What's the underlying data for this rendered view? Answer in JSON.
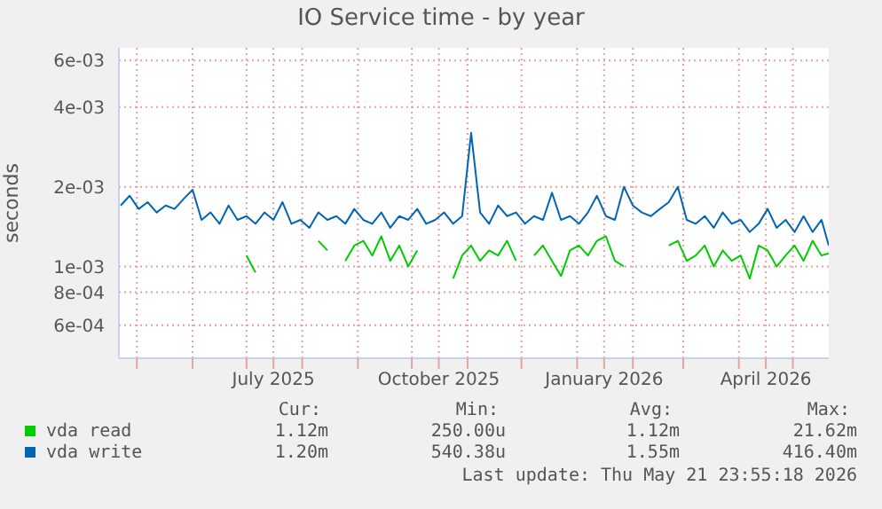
{
  "chart_data": {
    "type": "line",
    "title": "IO Service time - by year",
    "ylabel": "seconds",
    "log": "y",
    "grid": true,
    "legend": "bottom",
    "xlim": [
      "2025-04-21",
      "2026-05-21"
    ],
    "xticks": [
      {
        "value": "2025-05-01",
        "label": null
      },
      {
        "value": "2025-06-01",
        "label": null
      },
      {
        "value": "2025-07-01",
        "label": null
      },
      {
        "value": "2025-07-16",
        "label": "July 2025"
      },
      {
        "value": "2025-08-01",
        "label": null
      },
      {
        "value": "2025-09-01",
        "label": null
      },
      {
        "value": "2025-10-01",
        "label": null
      },
      {
        "value": "2025-10-16",
        "label": "October 2025"
      },
      {
        "value": "2025-11-01",
        "label": null
      },
      {
        "value": "2025-12-01",
        "label": null
      },
      {
        "value": "2026-01-01",
        "label": null
      },
      {
        "value": "2026-01-16",
        "label": "January 2026"
      },
      {
        "value": "2026-02-01",
        "label": null
      },
      {
        "value": "2026-03-01",
        "label": null
      },
      {
        "value": "2026-04-01",
        "label": null
      },
      {
        "value": "2026-04-16",
        "label": "April 2026"
      },
      {
        "value": "2026-05-01",
        "label": null
      }
    ],
    "ylim": [
      0.00045,
      0.0067
    ],
    "yticks": [
      {
        "value": 0.0006,
        "label": "6e-04"
      },
      {
        "value": 0.0008,
        "label": "8e-04"
      },
      {
        "value": 0.001,
        "label": "1e-03"
      },
      {
        "value": 0.002,
        "label": "2e-03"
      },
      {
        "value": 0.004,
        "label": "4e-03"
      },
      {
        "value": 0.006,
        "label": "6e-03"
      }
    ],
    "x": [
      "2025-04-22",
      "2025-04-27",
      "2025-05-02",
      "2025-05-07",
      "2025-05-12",
      "2025-05-17",
      "2025-05-22",
      "2025-05-27",
      "2025-06-01",
      "2025-06-06",
      "2025-06-11",
      "2025-06-16",
      "2025-06-21",
      "2025-06-26",
      "2025-07-01",
      "2025-07-06",
      "2025-07-11",
      "2025-07-16",
      "2025-07-21",
      "2025-07-26",
      "2025-07-31",
      "2025-08-05",
      "2025-08-10",
      "2025-08-15",
      "2025-08-20",
      "2025-08-25",
      "2025-08-30",
      "2025-09-04",
      "2025-09-09",
      "2025-09-14",
      "2025-09-19",
      "2025-09-24",
      "2025-09-29",
      "2025-10-04",
      "2025-10-09",
      "2025-10-14",
      "2025-10-19",
      "2025-10-24",
      "2025-10-29",
      "2025-11-03",
      "2025-11-08",
      "2025-11-13",
      "2025-11-18",
      "2025-11-23",
      "2025-11-28",
      "2025-12-03",
      "2025-12-08",
      "2025-12-13",
      "2025-12-18",
      "2025-12-23",
      "2025-12-28",
      "2026-01-02",
      "2026-01-07",
      "2026-01-12",
      "2026-01-17",
      "2026-01-22",
      "2026-01-27",
      "2026-02-01",
      "2026-02-06",
      "2026-02-11",
      "2026-02-16",
      "2026-02-21",
      "2026-02-26",
      "2026-03-03",
      "2026-03-08",
      "2026-03-13",
      "2026-03-18",
      "2026-03-23",
      "2026-03-28",
      "2026-04-02",
      "2026-04-07",
      "2026-04-12",
      "2026-04-17",
      "2026-04-22",
      "2026-04-27",
      "2026-05-02",
      "2026-05-07",
      "2026-05-12",
      "2026-05-17",
      "2026-05-21"
    ],
    "series": [
      {
        "name": "vda read",
        "color": "#00cc00",
        "values": [
          null,
          null,
          null,
          null,
          null,
          null,
          null,
          null,
          null,
          null,
          null,
          null,
          null,
          null,
          0.0011,
          0.00095,
          null,
          null,
          null,
          null,
          null,
          null,
          0.00125,
          0.00115,
          null,
          0.00105,
          0.0012,
          0.00125,
          0.0011,
          0.0013,
          0.00105,
          0.0012,
          0.001,
          0.00115,
          null,
          null,
          null,
          0.0009,
          0.0011,
          0.0012,
          0.00105,
          0.00115,
          0.0011,
          0.00125,
          0.00105,
          null,
          0.0011,
          0.0012,
          0.00105,
          0.00092,
          0.00115,
          0.0012,
          0.0011,
          0.00125,
          0.0013,
          0.00105,
          0.001,
          null,
          null,
          null,
          null,
          0.0012,
          0.00125,
          0.00105,
          0.0011,
          0.0012,
          0.001,
          0.00115,
          0.00105,
          0.0011,
          0.0009,
          0.0012,
          0.00115,
          0.001,
          0.0011,
          0.0012,
          0.00105,
          0.00125,
          0.0011,
          0.00112
        ]
      },
      {
        "name": "vda write",
        "color": "#0066b3",
        "values": [
          0.0017,
          0.00185,
          0.00165,
          0.00175,
          0.0016,
          0.0017,
          0.00165,
          0.0018,
          0.00195,
          0.0015,
          0.0016,
          0.00145,
          0.0017,
          0.0015,
          0.00155,
          0.00145,
          0.0016,
          0.0015,
          0.00175,
          0.00145,
          0.0015,
          0.0014,
          0.0016,
          0.0015,
          0.00155,
          0.00145,
          0.00165,
          0.0015,
          0.00145,
          0.0016,
          0.0014,
          0.00155,
          0.0015,
          0.00165,
          0.00145,
          0.0015,
          0.0016,
          0.00145,
          0.00155,
          0.0032,
          0.0016,
          0.00145,
          0.0017,
          0.00155,
          0.0016,
          0.00145,
          0.00155,
          0.0015,
          0.0019,
          0.0015,
          0.00155,
          0.00145,
          0.0016,
          0.00185,
          0.00155,
          0.0015,
          0.002,
          0.0017,
          0.0016,
          0.00155,
          0.00165,
          0.00175,
          0.002,
          0.0015,
          0.00145,
          0.00155,
          0.0014,
          0.0016,
          0.00145,
          0.0015,
          0.00135,
          0.00145,
          0.00165,
          0.0014,
          0.0015,
          0.00135,
          0.00155,
          0.00135,
          0.0015,
          0.0012
        ]
      }
    ],
    "annotations": [
      "Cur:",
      "Min:",
      "Avg:",
      "Max:",
      "1.12m",
      "250.00u",
      "1.12m",
      "21.62m",
      "1.20m",
      "540.38u",
      "1.55m",
      "416.40m",
      "Last update: Thu May 21 23:55:18 2026"
    ]
  }
}
